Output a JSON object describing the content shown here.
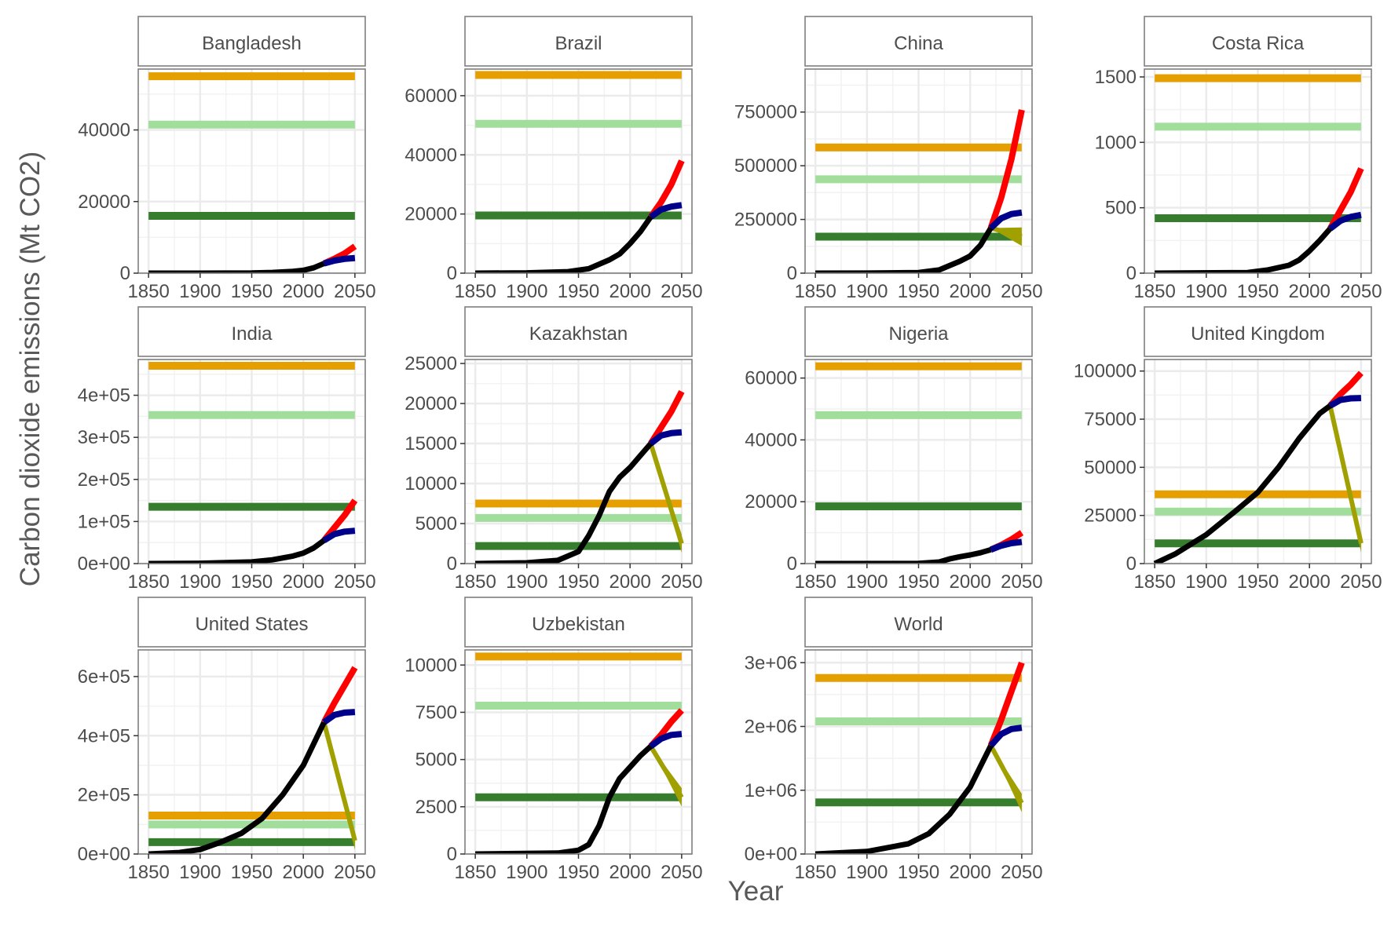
{
  "chart_data": {
    "type": "line",
    "xlabel": "Year",
    "ylabel": "Carbon dioxide emissions (Mt CO2)",
    "xlim": [
      1850,
      2050
    ],
    "x_ticks": [
      1850,
      1900,
      1950,
      2000,
      2050
    ],
    "x_tick_labels": [
      "1850",
      "1900",
      "1950",
      "2000",
      "2050"
    ],
    "grid": true,
    "colors": {
      "historical": "#000000",
      "high_projection": "#ff0000",
      "medium_projection": "#00008b",
      "low_projection": "#a0a000",
      "budget_orange": "#e69f00",
      "budget_lightgreen": "#a1dd9b",
      "budget_darkgreen": "#367e2e"
    },
    "panels": [
      {
        "name": "Bangladesh",
        "ylim": [
          0,
          57000
        ],
        "y_ticks": [
          0,
          20000,
          40000
        ],
        "y_tick_labels": [
          "0",
          "20000",
          "40000"
        ],
        "hlines": [
          55000,
          41500,
          16000
        ],
        "historical": [
          [
            1850,
            0
          ],
          [
            1900,
            0
          ],
          [
            1950,
            50
          ],
          [
            1970,
            200
          ],
          [
            1990,
            500
          ],
          [
            2000,
            800
          ],
          [
            2010,
            1500
          ],
          [
            2020,
            2700
          ]
        ],
        "high_projection": [
          [
            2020,
            2700
          ],
          [
            2030,
            4000
          ],
          [
            2040,
            5500
          ],
          [
            2050,
            7500
          ]
        ],
        "medium_projection": [
          [
            2020,
            2700
          ],
          [
            2030,
            3500
          ],
          [
            2040,
            4000
          ],
          [
            2050,
            4200
          ]
        ],
        "low_projection": []
      },
      {
        "name": "Brazil",
        "ylim": [
          0,
          69000
        ],
        "y_ticks": [
          0,
          20000,
          40000,
          60000
        ],
        "y_tick_labels": [
          "0",
          "20000",
          "40000",
          "60000"
        ],
        "hlines": [
          67000,
          50500,
          19500
        ],
        "historical": [
          [
            1850,
            0
          ],
          [
            1900,
            100
          ],
          [
            1940,
            500
          ],
          [
            1960,
            1500
          ],
          [
            1980,
            4500
          ],
          [
            1990,
            6500
          ],
          [
            2000,
            10000
          ],
          [
            2010,
            14000
          ],
          [
            2020,
            19000
          ]
        ],
        "high_projection": [
          [
            2020,
            19000
          ],
          [
            2030,
            24000
          ],
          [
            2040,
            30000
          ],
          [
            2050,
            38000
          ]
        ],
        "medium_projection": [
          [
            2020,
            19000
          ],
          [
            2030,
            21500
          ],
          [
            2040,
            22500
          ],
          [
            2050,
            23000
          ]
        ],
        "low_projection": []
      },
      {
        "name": "China",
        "ylim": [
          0,
          950000
        ],
        "y_ticks": [
          0,
          250000,
          500000,
          750000
        ],
        "y_tick_labels": [
          "0",
          "250000",
          "500000",
          "750000"
        ],
        "hlines": [
          585000,
          437000,
          170000
        ],
        "historical": [
          [
            1850,
            0
          ],
          [
            1900,
            500
          ],
          [
            1950,
            3000
          ],
          [
            1970,
            15000
          ],
          [
            1980,
            35000
          ],
          [
            1990,
            55000
          ],
          [
            2000,
            80000
          ],
          [
            2010,
            130000
          ],
          [
            2020,
            210000
          ]
        ],
        "high_projection": [
          [
            2020,
            210000
          ],
          [
            2030,
            350000
          ],
          [
            2040,
            530000
          ],
          [
            2050,
            760000
          ]
        ],
        "medium_projection": [
          [
            2020,
            210000
          ],
          [
            2030,
            255000
          ],
          [
            2040,
            275000
          ],
          [
            2050,
            282000
          ]
        ],
        "low_projection": [
          [
            2020,
            210000
          ],
          [
            2050,
            170000
          ]
        ]
      },
      {
        "name": "Costa Rica",
        "ylim": [
          0,
          1560
        ],
        "y_ticks": [
          0,
          500,
          1000,
          1500
        ],
        "y_tick_labels": [
          "0",
          "500",
          "1000",
          "1500"
        ],
        "hlines": [
          1490,
          1120,
          420
        ],
        "historical": [
          [
            1850,
            0
          ],
          [
            1940,
            5
          ],
          [
            1960,
            25
          ],
          [
            1980,
            60
          ],
          [
            1990,
            100
          ],
          [
            2000,
            170
          ],
          [
            2010,
            250
          ],
          [
            2020,
            340
          ]
        ],
        "high_projection": [
          [
            2020,
            340
          ],
          [
            2030,
            480
          ],
          [
            2040,
            620
          ],
          [
            2050,
            800
          ]
        ],
        "medium_projection": [
          [
            2020,
            340
          ],
          [
            2030,
            400
          ],
          [
            2040,
            430
          ],
          [
            2050,
            445
          ]
        ],
        "low_projection": []
      },
      {
        "name": "India",
        "ylim": [
          0,
          485000
        ],
        "y_ticks": [
          0,
          100000,
          200000,
          300000,
          400000
        ],
        "y_tick_labels": [
          "0e+00",
          "1e+05",
          "2e+05",
          "3e+05",
          "4e+05"
        ],
        "hlines": [
          470000,
          353000,
          135000
        ],
        "historical": [
          [
            1850,
            0
          ],
          [
            1900,
            800
          ],
          [
            1950,
            4000
          ],
          [
            1970,
            9000
          ],
          [
            1990,
            18000
          ],
          [
            2000,
            25000
          ],
          [
            2010,
            37000
          ],
          [
            2020,
            55000
          ]
        ],
        "high_projection": [
          [
            2020,
            55000
          ],
          [
            2030,
            85000
          ],
          [
            2040,
            115000
          ],
          [
            2050,
            150000
          ]
        ],
        "medium_projection": [
          [
            2020,
            55000
          ],
          [
            2030,
            70000
          ],
          [
            2040,
            76000
          ],
          [
            2050,
            78000
          ]
        ],
        "low_projection": []
      },
      {
        "name": "Kazakhstan",
        "ylim": [
          0,
          25500
        ],
        "y_ticks": [
          0,
          5000,
          10000,
          15000,
          20000,
          25000
        ],
        "y_tick_labels": [
          "0",
          "5000",
          "10000",
          "15000",
          "20000",
          "25000"
        ],
        "hlines": [
          7500,
          5700,
          2200
        ],
        "historical": [
          [
            1850,
            0
          ],
          [
            1900,
            100
          ],
          [
            1930,
            400
          ],
          [
            1950,
            1500
          ],
          [
            1960,
            3500
          ],
          [
            1970,
            6000
          ],
          [
            1980,
            9000
          ],
          [
            1990,
            10800
          ],
          [
            2000,
            12000
          ],
          [
            2010,
            13500
          ],
          [
            2020,
            15000
          ]
        ],
        "high_projection": [
          [
            2020,
            15000
          ],
          [
            2030,
            17000
          ],
          [
            2040,
            19000
          ],
          [
            2050,
            21500
          ]
        ],
        "medium_projection": [
          [
            2020,
            15000
          ],
          [
            2030,
            16000
          ],
          [
            2040,
            16300
          ],
          [
            2050,
            16400
          ]
        ],
        "low_projection": [
          [
            2020,
            15000
          ],
          [
            2050,
            2500
          ]
        ]
      },
      {
        "name": "Nigeria",
        "ylim": [
          0,
          66000
        ],
        "y_ticks": [
          0,
          20000,
          40000,
          60000
        ],
        "y_tick_labels": [
          "0",
          "20000",
          "40000",
          "60000"
        ],
        "hlines": [
          63800,
          48000,
          18500
        ],
        "historical": [
          [
            1850,
            0
          ],
          [
            1950,
            50
          ],
          [
            1970,
            500
          ],
          [
            1980,
            1500
          ],
          [
            1990,
            2200
          ],
          [
            2000,
            2800
          ],
          [
            2010,
            3500
          ],
          [
            2020,
            4500
          ]
        ],
        "high_projection": [
          [
            2020,
            4500
          ],
          [
            2030,
            6000
          ],
          [
            2040,
            7800
          ],
          [
            2050,
            10000
          ]
        ],
        "medium_projection": [
          [
            2020,
            4500
          ],
          [
            2030,
            5800
          ],
          [
            2040,
            6600
          ],
          [
            2050,
            7000
          ]
        ],
        "low_projection": []
      },
      {
        "name": "United Kingdom",
        "ylim": [
          0,
          106000
        ],
        "y_ticks": [
          0,
          25000,
          50000,
          75000,
          100000
        ],
        "y_tick_labels": [
          "0",
          "25000",
          "50000",
          "75000",
          "100000"
        ],
        "hlines": [
          36000,
          27000,
          10500
        ],
        "historical": [
          [
            1850,
            0
          ],
          [
            1870,
            5000
          ],
          [
            1900,
            15000
          ],
          [
            1930,
            28000
          ],
          [
            1950,
            37000
          ],
          [
            1970,
            50000
          ],
          [
            1990,
            65000
          ],
          [
            2010,
            78000
          ],
          [
            2020,
            82000
          ]
        ],
        "high_projection": [
          [
            2020,
            82000
          ],
          [
            2030,
            88000
          ],
          [
            2040,
            93000
          ],
          [
            2050,
            99000
          ]
        ],
        "medium_projection": [
          [
            2020,
            82000
          ],
          [
            2030,
            85000
          ],
          [
            2040,
            85800
          ],
          [
            2050,
            86000
          ]
        ],
        "low_projection": [
          [
            2020,
            82000
          ],
          [
            2050,
            10500
          ]
        ]
      },
      {
        "name": "United States",
        "ylim": [
          0,
          690000
        ],
        "y_ticks": [
          0,
          200000,
          400000,
          600000
        ],
        "y_tick_labels": [
          "0e+00",
          "2e+05",
          "4e+05",
          "6e+05"
        ],
        "hlines": [
          130000,
          100000,
          40000
        ],
        "historical": [
          [
            1850,
            0
          ],
          [
            1880,
            5000
          ],
          [
            1900,
            15000
          ],
          [
            1920,
            40000
          ],
          [
            1940,
            70000
          ],
          [
            1960,
            120000
          ],
          [
            1980,
            200000
          ],
          [
            2000,
            300000
          ],
          [
            2020,
            445000
          ]
        ],
        "high_projection": [
          [
            2020,
            445000
          ],
          [
            2030,
            510000
          ],
          [
            2040,
            570000
          ],
          [
            2050,
            630000
          ]
        ],
        "medium_projection": [
          [
            2020,
            445000
          ],
          [
            2030,
            470000
          ],
          [
            2040,
            478000
          ],
          [
            2050,
            480000
          ]
        ],
        "low_projection": [
          [
            2020,
            445000
          ],
          [
            2050,
            45000
          ]
        ]
      },
      {
        "name": "Uzbekistan",
        "ylim": [
          0,
          10800
        ],
        "y_ticks": [
          0,
          2500,
          5000,
          7500,
          10000
        ],
        "y_tick_labels": [
          "0",
          "2500",
          "5000",
          "7500",
          "10000"
        ],
        "hlines": [
          10450,
          7850,
          3000
        ],
        "historical": [
          [
            1850,
            0
          ],
          [
            1930,
            50
          ],
          [
            1950,
            200
          ],
          [
            1960,
            500
          ],
          [
            1970,
            1500
          ],
          [
            1980,
            3000
          ],
          [
            1990,
            4000
          ],
          [
            2000,
            4600
          ],
          [
            2010,
            5200
          ],
          [
            2020,
            5700
          ]
        ],
        "high_projection": [
          [
            2020,
            5700
          ],
          [
            2030,
            6300
          ],
          [
            2040,
            7000
          ],
          [
            2050,
            7600
          ]
        ],
        "medium_projection": [
          [
            2020,
            5700
          ],
          [
            2030,
            6100
          ],
          [
            2040,
            6300
          ],
          [
            2050,
            6350
          ]
        ],
        "low_projection": [
          [
            2020,
            5700
          ],
          [
            2050,
            3000
          ]
        ]
      },
      {
        "name": "World",
        "ylim": [
          0,
          3200000
        ],
        "y_ticks": [
          0,
          1000000,
          2000000,
          3000000
        ],
        "y_tick_labels": [
          "0e+00",
          "1e+06",
          "2e+06",
          "3e+06"
        ],
        "hlines": [
          2760000,
          2080000,
          810000
        ],
        "historical": [
          [
            1850,
            0
          ],
          [
            1900,
            40000
          ],
          [
            1940,
            160000
          ],
          [
            1960,
            320000
          ],
          [
            1980,
            620000
          ],
          [
            2000,
            1050000
          ],
          [
            2020,
            1700000
          ]
        ],
        "high_projection": [
          [
            2020,
            1700000
          ],
          [
            2030,
            2100000
          ],
          [
            2040,
            2550000
          ],
          [
            2050,
            3000000
          ]
        ],
        "medium_projection": [
          [
            2020,
            1700000
          ],
          [
            2030,
            1880000
          ],
          [
            2040,
            1960000
          ],
          [
            2050,
            1980000
          ]
        ],
        "low_projection": [
          [
            2020,
            1700000
          ],
          [
            2050,
            800000
          ]
        ]
      }
    ]
  }
}
